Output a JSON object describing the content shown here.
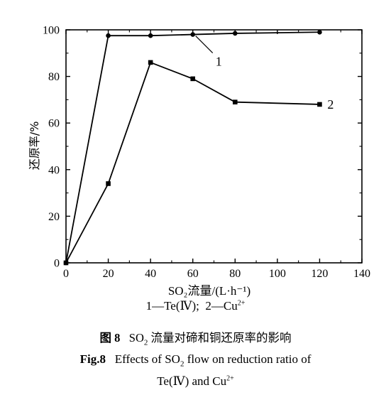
{
  "chart_data": {
    "type": "line",
    "xlabel": "SO₂流量/(L·h⁻¹)",
    "ylabel": "还原率/%",
    "xlim": [
      0,
      140
    ],
    "ylim": [
      0,
      100
    ],
    "x_ticks": [
      "0",
      "20",
      "40",
      "60",
      "80",
      "100",
      "120",
      "140"
    ],
    "y_ticks": [
      "0",
      "20",
      "40",
      "60",
      "80",
      "100"
    ],
    "grid": false,
    "series": [
      {
        "name": "1",
        "marker": "circle",
        "x": [
          0,
          20,
          40,
          60,
          80,
          120
        ],
        "y": [
          0,
          97.5,
          97.5,
          98,
          98.5,
          99
        ]
      },
      {
        "name": "2",
        "marker": "square",
        "x": [
          0,
          20,
          40,
          60,
          80,
          120
        ],
        "y": [
          0,
          34,
          86,
          79,
          69,
          68
        ]
      }
    ]
  },
  "captions": {
    "legend": {
      "s1": "1—Te(Ⅳ);",
      "s2": "2—Cu",
      "s2_sup": "2+"
    },
    "zh": {
      "label": "图 8",
      "pre": "SO",
      "sub": "2",
      "post": " 流量对碲和铜还原率的影响"
    },
    "en": {
      "label": "Fig.8",
      "pre": "Effects of SO",
      "sub": "2",
      "post": " flow on reduction ratio of",
      "line2_pre": "Te(Ⅳ) and Cu",
      "line2_sup": "2+"
    }
  }
}
